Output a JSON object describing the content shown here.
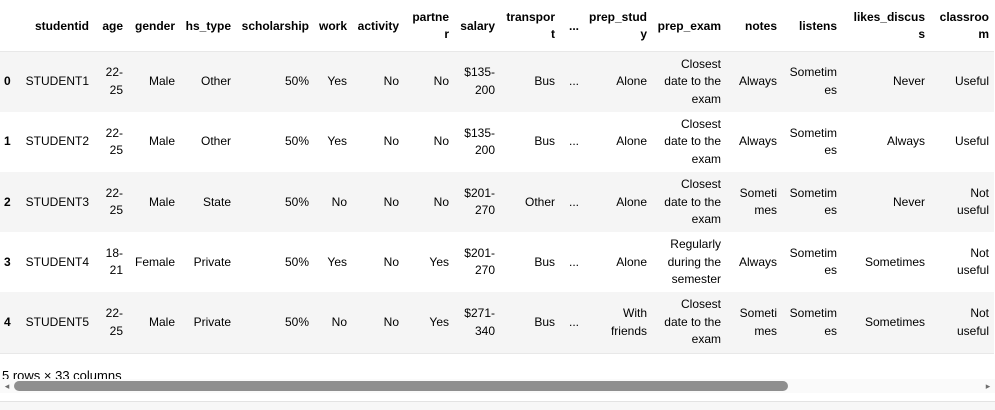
{
  "table": {
    "columns": [
      "studentid",
      "age",
      "gender",
      "hs_type",
      "scholarship",
      "work",
      "activity",
      "partner",
      "salary",
      "transport",
      "...",
      "prep_study",
      "prep_exam",
      "notes",
      "listens",
      "likes_discuss",
      "classroom"
    ],
    "rows": [
      {
        "index": "0",
        "cells": [
          "STUDENT1",
          "22-25",
          "Male",
          "Other",
          "50%",
          "Yes",
          "No",
          "No",
          "$135-200",
          "Bus",
          "...",
          "Alone",
          "Closest date to the exam",
          "Always",
          "Sometimes",
          "Never",
          "Useful"
        ]
      },
      {
        "index": "1",
        "cells": [
          "STUDENT2",
          "22-25",
          "Male",
          "Other",
          "50%",
          "Yes",
          "No",
          "No",
          "$135-200",
          "Bus",
          "...",
          "Alone",
          "Closest date to the exam",
          "Always",
          "Sometimes",
          "Always",
          "Useful"
        ]
      },
      {
        "index": "2",
        "cells": [
          "STUDENT3",
          "22-25",
          "Male",
          "State",
          "50%",
          "No",
          "No",
          "No",
          "$201-270",
          "Other",
          "...",
          "Alone",
          "Closest date to the exam",
          "Sometimes",
          "Sometimes",
          "Never",
          "Not useful"
        ]
      },
      {
        "index": "3",
        "cells": [
          "STUDENT4",
          "18-21",
          "Female",
          "Private",
          "50%",
          "Yes",
          "No",
          "Yes",
          "$201-270",
          "Bus",
          "...",
          "Alone",
          "Regularly during the semester",
          "Always",
          "Sometimes",
          "Sometimes",
          "Not useful"
        ]
      },
      {
        "index": "4",
        "cells": [
          "STUDENT5",
          "22-25",
          "Male",
          "Private",
          "50%",
          "No",
          "No",
          "Yes",
          "$271-340",
          "Bus",
          "...",
          "With friends",
          "Closest date to the exam",
          "Sometimes",
          "Sometimes",
          "Sometimes",
          "Not useful"
        ]
      }
    ]
  },
  "footer": {
    "summary": "5 rows × 33 columns"
  },
  "icons": {
    "left_arrow": "◂",
    "right_arrow": "▸"
  },
  "colors": {
    "stripe": "#f5f5f5",
    "scrollbar_thumb": "#8f8f8f",
    "header_border": "#e8e8e8"
  }
}
